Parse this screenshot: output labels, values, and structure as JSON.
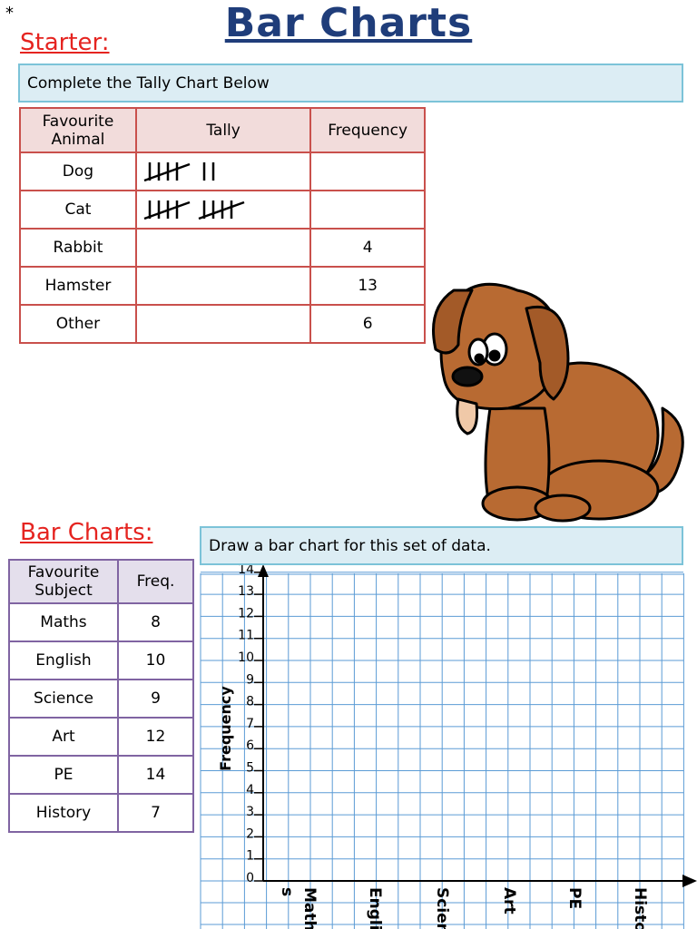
{
  "star": "*",
  "title": "Bar Charts",
  "starter": {
    "heading": "Starter:",
    "instruction": "Complete the Tally Chart Below",
    "table": {
      "header": [
        "Favourite Animal",
        "Tally",
        "Frequency"
      ],
      "rows": [
        {
          "animal": "Dog",
          "tally": 7
        },
        {
          "animal": "Cat",
          "tally": 10
        },
        {
          "animal": "Rabbit",
          "frequency": 4
        },
        {
          "animal": "Hamster",
          "frequency": 13
        },
        {
          "animal": "Other",
          "frequency": 6
        }
      ]
    }
  },
  "bar_charts": {
    "heading": "Bar Charts:",
    "instruction": "Draw a bar chart for this set of data.",
    "table": {
      "header": [
        "Favourite Subject",
        "Freq."
      ],
      "rows": [
        [
          "Maths",
          8
        ],
        [
          "English",
          10
        ],
        [
          "Science",
          9
        ],
        [
          "Art",
          12
        ],
        [
          "PE",
          14
        ],
        [
          "History",
          7
        ]
      ]
    },
    "grid": {
      "y_label": "Frequency",
      "yticks": [
        0,
        1,
        2,
        3,
        4,
        5,
        6,
        7,
        8,
        9,
        10,
        11,
        12,
        13,
        14
      ],
      "x_labels": [
        "s",
        "Maths",
        "English",
        "Science",
        "Art",
        "PE",
        "History"
      ]
    }
  }
}
